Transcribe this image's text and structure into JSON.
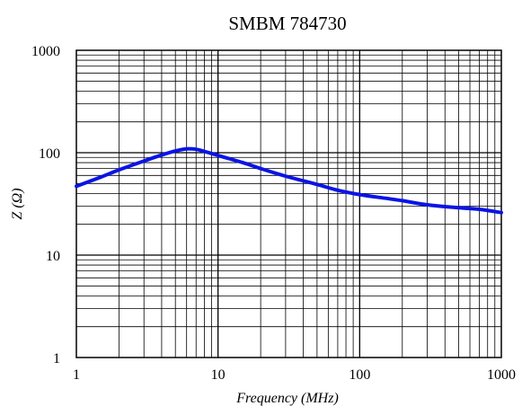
{
  "chart_data": {
    "type": "line",
    "title": "SMBM 784730",
    "xlabel": "Frequency (MHz)",
    "ylabel": "Z (Ω)",
    "x_scale": "log",
    "y_scale": "log",
    "xlim": [
      1,
      1000
    ],
    "ylim": [
      1,
      1000
    ],
    "x_ticks": [
      "1",
      "10",
      "100",
      "1000"
    ],
    "y_ticks": [
      "1",
      "10",
      "100",
      "1000"
    ],
    "grid": true,
    "legend": "none",
    "series_color": "#0a14e6",
    "series": [
      {
        "x": [
          1,
          1.5,
          2,
          3,
          4,
          5,
          6,
          7,
          8,
          10,
          15,
          20,
          30,
          50,
          70,
          100,
          150,
          200,
          300,
          500,
          700,
          1000
        ],
        "y": [
          47,
          58,
          68,
          83,
          95,
          104,
          109,
          108,
          103,
          94,
          80,
          70,
          59,
          49,
          43,
          39,
          36,
          34,
          31,
          29,
          28,
          26
        ]
      }
    ]
  }
}
